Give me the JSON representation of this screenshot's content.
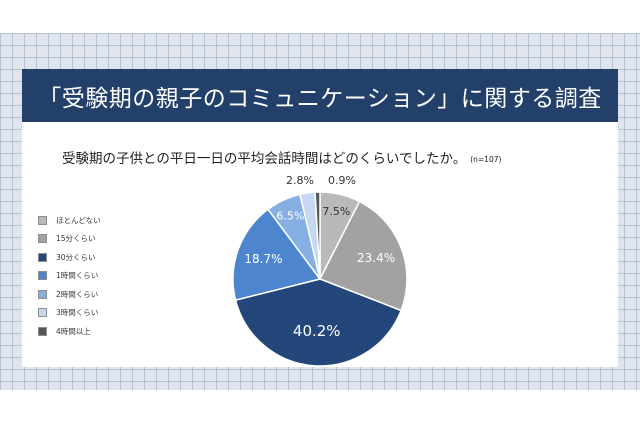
{
  "header": {
    "title": "「受験期の親子のコミュニケーション」に関する調査"
  },
  "chart_data": {
    "type": "pie",
    "title": "受験期の子供との平日一日の平均会話時間はどのくらいでしたか。",
    "sample_note": "(n=107)",
    "categories": [
      "ほとんどない",
      "15分くらい",
      "30分くらい",
      "1時間くらい",
      "2時間くらい",
      "3時間くらい",
      "4時間以上"
    ],
    "values": [
      7.5,
      23.4,
      40.2,
      18.7,
      6.5,
      2.8,
      0.9
    ],
    "labels": [
      "7.5%",
      "23.4%",
      "40.2%",
      "18.7%",
      "6.5%",
      "2.8%",
      "0.9%"
    ],
    "colors": [
      "#b9b9b9",
      "#a2a2a2",
      "#23477a",
      "#4d86cf",
      "#86afe4",
      "#c6d8f1",
      "#555555"
    ],
    "label_colors": [
      "#333333",
      "#ffffff",
      "#ffffff",
      "#ffffff",
      "#ffffff",
      "#333333",
      "#333333"
    ],
    "legend_position": "left",
    "start_angle_deg": 0,
    "direction": "clockwise"
  }
}
